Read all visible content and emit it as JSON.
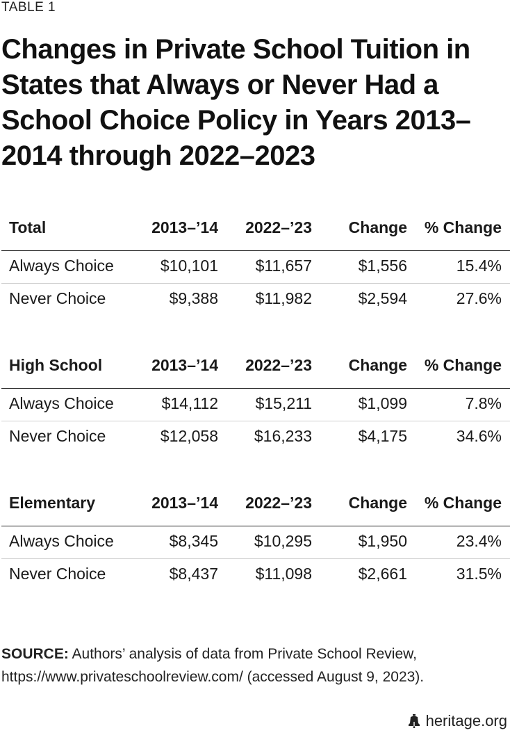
{
  "label": "TABLE 1",
  "title": "Changes in Private School Tuition in States that Always or Never Had a School Choice Policy in Years 2013–2014 through 2022–2023",
  "columns": [
    "2013–’14",
    "2022–’23",
    "Change",
    "% Change"
  ],
  "sections": [
    {
      "name": "Total",
      "rows": [
        [
          "Always Choice",
          "$10,101",
          "$11,657",
          "$1,556",
          "15.4%"
        ],
        [
          "Never Choice",
          "$9,388",
          "$11,982",
          "$2,594",
          "27.6%"
        ]
      ]
    },
    {
      "name": "High School",
      "rows": [
        [
          "Always Choice",
          "$14,112",
          "$15,211",
          "$1,099",
          "7.8%"
        ],
        [
          "Never Choice",
          "$12,058",
          "$16,233",
          "$4,175",
          "34.6%"
        ]
      ]
    },
    {
      "name": "Elementary",
      "rows": [
        [
          "Always Choice",
          "$8,345",
          "$10,295",
          "$1,950",
          "23.4%"
        ],
        [
          "Never Choice",
          "$8,437",
          "$11,098",
          "$2,661",
          "31.5%"
        ]
      ]
    }
  ],
  "source": {
    "label": "SOURCE:",
    "text": " Authors’ analysis of data from Private School Review, https://www.privateschoolreview.com/ (accessed August 9, 2023)."
  },
  "footer": {
    "icon": "liberty-bell-icon",
    "text": "heritage.org"
  }
}
